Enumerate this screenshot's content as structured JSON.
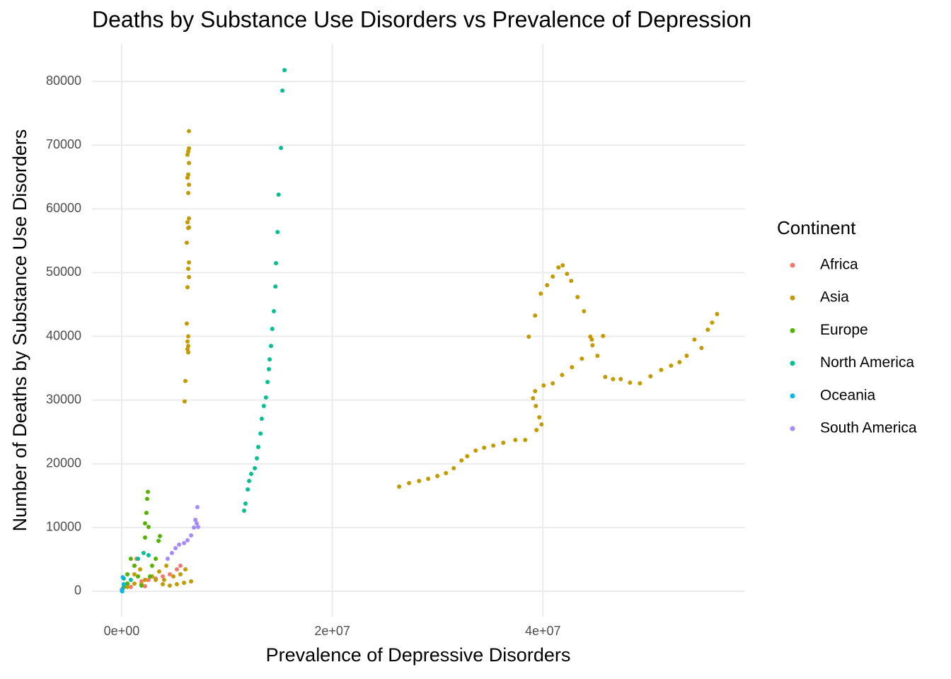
{
  "chart_data": {
    "type": "scatter",
    "title": "Deaths by Substance Use Disorders vs Prevalence of Depression",
    "x_label": "Prevalence of Depressive Disorders",
    "y_label": "Number of Deaths by Substance Use Disorders",
    "legend_title": "Continent",
    "legend_position": "right",
    "grid": true,
    "xlim": [
      -2820000,
      59200000
    ],
    "ylim": [
      -4000,
      85900
    ],
    "xticks": [
      {
        "value": 0,
        "label": "0e+00"
      },
      {
        "value": 20000000,
        "label": "2e+07"
      },
      {
        "value": 40000000,
        "label": "4e+07"
      }
    ],
    "yticks": [
      0,
      10000,
      20000,
      30000,
      40000,
      50000,
      60000,
      70000,
      80000
    ],
    "series": [
      {
        "name": "Africa",
        "color": "#F8766D",
        "x": [
          0,
          540000,
          1210000,
          1410000,
          1880000,
          2550000,
          3230000,
          3900000,
          4570000,
          5240000,
          5580000,
          870000,
          2220000
        ],
        "values": [
          200,
          1200,
          4000,
          5100,
          1550,
          1780,
          2000,
          2330,
          2660,
          3440,
          4000,
          670,
          780
        ]
      },
      {
        "name": "Asia",
        "color": "#C49A00",
        "x": [
          26350000,
          27290000,
          28240000,
          29110000,
          29980000,
          30790000,
          31530000,
          32270000,
          32810000,
          33610000,
          34420000,
          35290000,
          36240000,
          37380000,
          38320000,
          39390000,
          39870000,
          39660000,
          39330000,
          39060000,
          39260000,
          40070000,
          40940000,
          41820000,
          42760000,
          43700000,
          44640000,
          44710000,
          45180000,
          45710000,
          45920000,
          46660000,
          47390000,
          48270000,
          49210000,
          50220000,
          51230000,
          52170000,
          52970000,
          53650000,
          54390000,
          55060000,
          55660000,
          56070000,
          56540000,
          38660000,
          39260000,
          39800000,
          40400000,
          40940000,
          41480000,
          41880000,
          42290000,
          42690000,
          43290000,
          43900000,
          44500000,
          5980000,
          6050000,
          6320000,
          6250000,
          6320000,
          6250000,
          6320000,
          6180000,
          6250000,
          6390000,
          6320000,
          6390000,
          6180000,
          6320000,
          6390000,
          6250000,
          6390000,
          6320000,
          6390000,
          6250000,
          6320000,
          6390000,
          6250000,
          6320000,
          6390000,
          6390000,
          540000,
          1210000,
          1880000,
          2220000,
          2890000,
          3560000,
          4240000,
          3900000,
          4570000,
          5240000,
          5920000,
          6590000,
          3230000,
          4030000,
          4910000,
          5580000,
          6050000,
          1210000,
          1750000
        ],
        "values": [
          16420,
          16980,
          17310,
          17640,
          18090,
          18530,
          19310,
          20530,
          21190,
          22080,
          22520,
          22860,
          23300,
          23740,
          23740,
          25300,
          26190,
          27300,
          29070,
          30290,
          31400,
          32290,
          32620,
          33950,
          35170,
          36500,
          39500,
          38610,
          36950,
          40060,
          33620,
          33290,
          33290,
          32730,
          32620,
          33730,
          34730,
          35400,
          35950,
          36950,
          39500,
          38170,
          41050,
          42160,
          43500,
          39950,
          43270,
          46710,
          48040,
          49380,
          50820,
          51150,
          49820,
          48710,
          46160,
          43940,
          39950,
          29800,
          33000,
          37500,
          38000,
          38500,
          39200,
          40000,
          42000,
          47700,
          49300,
          50600,
          51600,
          54700,
          57000,
          57100,
          57900,
          58500,
          62500,
          63800,
          64900,
          65400,
          67200,
          68500,
          69000,
          69500,
          72200,
          670,
          1200,
          1100,
          1780,
          2330,
          3100,
          4000,
          1100,
          900,
          1100,
          1330,
          1550,
          1780,
          1780,
          2330,
          2660,
          3440,
          2660,
          3440
        ]
      },
      {
        "name": "Europe",
        "color": "#53B400",
        "x": [
          200000,
          540000,
          870000,
          1210000,
          1550000,
          1880000,
          2220000,
          2220000,
          2350000,
          2420000,
          2490000,
          2550000,
          2890000,
          3230000,
          3500000,
          3630000,
          2690000,
          540000
        ],
        "values": [
          670,
          2660,
          5100,
          4000,
          2330,
          890,
          8430,
          10650,
          12300,
          14500,
          15600,
          10100,
          4000,
          5100,
          7900,
          8650,
          2330,
          1200
        ]
      },
      {
        "name": "North America",
        "color": "#00C094",
        "x": [
          11630000,
          11760000,
          11970000,
          12100000,
          12300000,
          12640000,
          12840000,
          12970000,
          13180000,
          13300000,
          13500000,
          13700000,
          13850000,
          13980000,
          14050000,
          14180000,
          14300000,
          14450000,
          14600000,
          14650000,
          14800000,
          14900000,
          15130000,
          15260000,
          15460000,
          870000,
          1550000,
          2080000,
          2550000,
          200000
        ],
        "values": [
          12650,
          13760,
          15980,
          17310,
          18420,
          19310,
          20860,
          22640,
          24740,
          27070,
          29070,
          30400,
          32840,
          34840,
          36390,
          38500,
          41170,
          43940,
          47820,
          51480,
          56370,
          62250,
          69570,
          78560,
          81780,
          1780,
          5100,
          6000,
          5660,
          2000
        ]
      },
      {
        "name": "Oceania",
        "color": "#00B6EB",
        "x": [
          50000,
          100000,
          200000,
          100000
        ],
        "values": [
          0,
          400,
          1100,
          2200
        ]
      },
      {
        "name": "South America",
        "color": "#A58AFF",
        "x": [
          4370000,
          4770000,
          5110000,
          5450000,
          5920000,
          6250000,
          6590000,
          6860000,
          7130000,
          7260000,
          7190000,
          7000000
        ],
        "values": [
          5100,
          6000,
          6770,
          7320,
          7550,
          8000,
          8770,
          10000,
          10650,
          10100,
          13200,
          11200
        ]
      }
    ]
  }
}
